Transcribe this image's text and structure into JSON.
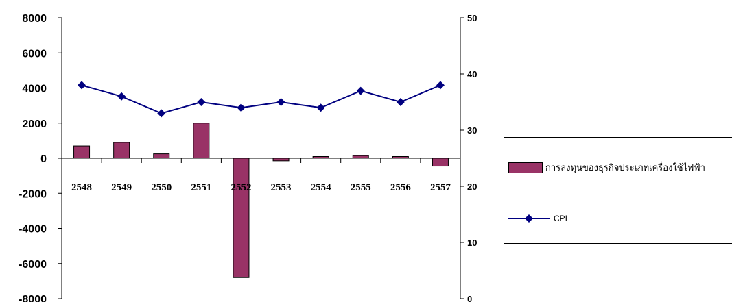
{
  "chart_data": {
    "type": "bar",
    "categories": [
      "2548",
      "2549",
      "2550",
      "2551",
      "2552",
      "2553",
      "2554",
      "2555",
      "2556",
      "2557"
    ],
    "series": [
      {
        "name": "การลงทุนของธุรกิจประเภทเครื่องใช้ไฟฟ้า",
        "type": "bar",
        "axis": "left",
        "color": "#993366",
        "values": [
          700,
          900,
          250,
          2000,
          -6800,
          -150,
          80,
          150,
          50,
          -450
        ]
      },
      {
        "name": "CPI",
        "type": "line",
        "axis": "right",
        "color": "#000080",
        "values": [
          38,
          36,
          33,
          35,
          34,
          35,
          34,
          37,
          35,
          38
        ]
      }
    ],
    "y_left": {
      "ylim": [
        -8000,
        8000
      ],
      "ticks": [
        8000,
        6000,
        4000,
        2000,
        0,
        -2000,
        -4000,
        -6000,
        -8000
      ]
    },
    "y_right": {
      "ylim": [
        0,
        50
      ],
      "ticks": [
        50,
        40,
        30,
        20,
        10,
        0
      ]
    },
    "legend": "right",
    "grid": false
  }
}
